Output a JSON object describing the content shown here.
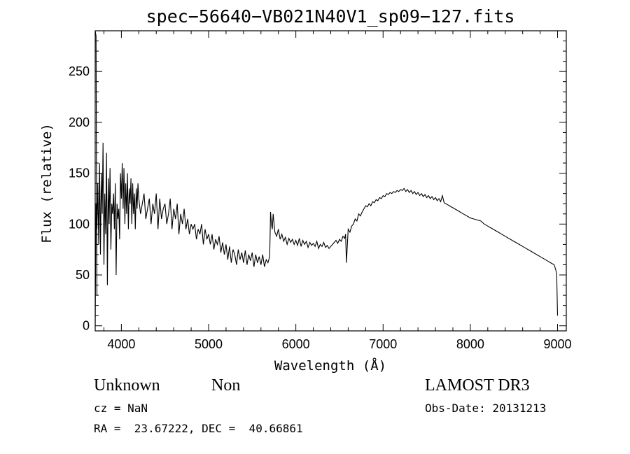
{
  "chart_data": {
    "type": "line",
    "title": "spec−56640−VB021N40V1_sp09−127.fits",
    "xlabel": "Wavelength (Å)",
    "ylabel": "Flux (relative)",
    "xlim": [
      3700,
      9100
    ],
    "ylim": [
      -5,
      290
    ],
    "xticks": [
      4000,
      5000,
      6000,
      7000,
      8000,
      9000
    ],
    "yticks": [
      0,
      50,
      100,
      150,
      200,
      250
    ],
    "grid": false,
    "series": [
      {
        "x": [
          3700,
          3710,
          3720,
          3730,
          3740,
          3750,
          3760,
          3770,
          3780,
          3790,
          3800,
          3810,
          3820,
          3830,
          3840,
          3850,
          3860,
          3870,
          3880,
          3890,
          3900,
          3910,
          3920,
          3930,
          3940,
          3950,
          3960,
          3970,
          3980,
          3990,
          4000,
          4010,
          4020,
          4030,
          4040,
          4050,
          4060,
          4070,
          4080,
          4090,
          4100,
          4110,
          4120,
          4130,
          4140,
          4150,
          4160,
          4170,
          4180,
          4190,
          4200,
          4220,
          4240,
          4260,
          4280,
          4300,
          4320,
          4340,
          4360,
          4380,
          4400,
          4420,
          4440,
          4460,
          4480,
          4500,
          4520,
          4540,
          4560,
          4580,
          4600,
          4620,
          4640,
          4660,
          4680,
          4700,
          4720,
          4740,
          4760,
          4780,
          4800,
          4820,
          4840,
          4860,
          4880,
          4900,
          4920,
          4940,
          4960,
          4980,
          5000,
          5020,
          5040,
          5060,
          5080,
          5100,
          5120,
          5140,
          5160,
          5180,
          5200,
          5220,
          5240,
          5260,
          5280,
          5300,
          5320,
          5340,
          5360,
          5380,
          5400,
          5420,
          5440,
          5460,
          5480,
          5500,
          5520,
          5540,
          5560,
          5580,
          5600,
          5620,
          5640,
          5660,
          5680,
          5700,
          5710,
          5720,
          5730,
          5740,
          5760,
          5780,
          5800,
          5820,
          5840,
          5860,
          5880,
          5900,
          5920,
          5940,
          5960,
          5980,
          6000,
          6020,
          6040,
          6060,
          6080,
          6100,
          6120,
          6140,
          6160,
          6180,
          6200,
          6220,
          6240,
          6260,
          6280,
          6300,
          6320,
          6340,
          6360,
          6380,
          6400,
          6420,
          6440,
          6460,
          6480,
          6500,
          6520,
          6540,
          6560,
          6570,
          6580,
          6600,
          6620,
          6640,
          6660,
          6680,
          6700,
          6720,
          6740,
          6760,
          6780,
          6800,
          6820,
          6840,
          6860,
          6880,
          6900,
          6920,
          6940,
          6960,
          6980,
          7000,
          7020,
          7040,
          7060,
          7080,
          7100,
          7120,
          7140,
          7160,
          7180,
          7200,
          7220,
          7240,
          7260,
          7280,
          7300,
          7320,
          7340,
          7360,
          7380,
          7400,
          7420,
          7440,
          7460,
          7480,
          7500,
          7520,
          7540,
          7560,
          7580,
          7600,
          7620,
          7640,
          7660,
          7680,
          7700,
          7720,
          7740,
          7760,
          7780,
          7800,
          7820,
          7840,
          7860,
          7880,
          7900,
          7920,
          7940,
          7960,
          7980,
          8000,
          8040,
          8080,
          8120,
          8160,
          8200,
          8240,
          8280,
          8320,
          8360,
          8400,
          8440,
          8480,
          8520,
          8560,
          8600,
          8640,
          8680,
          8720,
          8760,
          8800,
          8840,
          8880,
          8920,
          8960,
          8980,
          8990,
          9000
        ],
        "y": [
          0,
          120,
          95,
          140,
          80,
          160,
          70,
          150,
          110,
          180,
          60,
          130,
          90,
          170,
          40,
          145,
          100,
          155,
          75,
          120,
          110,
          130,
          95,
          140,
          50,
          120,
          105,
          115,
          85,
          150,
          125,
          160,
          115,
          155,
          100,
          140,
          110,
          150,
          95,
          135,
          120,
          145,
          100,
          140,
          110,
          130,
          95,
          135,
          115,
          140,
          125,
          110,
          120,
          130,
          105,
          115,
          125,
          100,
          120,
          110,
          130,
          95,
          125,
          105,
          115,
          120,
          100,
          110,
          125,
          95,
          115,
          105,
          120,
          90,
          110,
          100,
          115,
          95,
          105,
          90,
          100,
          95,
          100,
          85,
          95,
          90,
          100,
          80,
          95,
          85,
          90,
          80,
          90,
          75,
          85,
          80,
          88,
          72,
          82,
          70,
          80,
          65,
          78,
          62,
          75,
          70,
          60,
          75,
          65,
          72,
          62,
          74,
          60,
          70,
          64,
          72,
          58,
          70,
          62,
          68,
          60,
          70,
          58,
          65,
          62,
          68,
          112,
          100,
          95,
          110,
          92,
          88,
          95,
          85,
          90,
          83,
          87,
          80,
          86,
          82,
          85,
          80,
          84,
          79,
          86,
          78,
          84,
          80,
          83,
          77,
          82,
          79,
          81,
          78,
          83,
          76,
          80,
          78,
          82,
          77,
          79,
          76,
          78,
          80,
          82,
          84,
          81,
          85,
          83,
          88,
          86,
          90,
          62,
          95,
          92,
          98,
          100,
          105,
          103,
          110,
          108,
          112,
          115,
          118,
          117,
          120,
          118,
          122,
          121,
          124,
          123,
          126,
          125,
          128,
          127,
          130,
          129,
          131,
          130,
          132,
          131,
          133,
          132,
          134,
          133,
          135,
          132,
          134,
          131,
          133,
          130,
          132,
          129,
          131,
          128,
          130,
          127,
          129,
          126,
          128,
          125,
          127,
          124,
          126,
          123,
          125,
          122,
          128,
          121,
          120,
          119,
          118,
          117,
          116,
          115,
          114,
          113,
          112,
          111,
          110,
          109,
          108,
          107,
          106,
          105,
          104,
          103,
          100,
          98,
          96,
          94,
          92,
          90,
          88,
          86,
          84,
          82,
          80,
          78,
          76,
          74,
          72,
          70,
          68,
          66,
          64,
          62,
          60,
          55,
          50,
          10
        ]
      },
      {
        "x": [
          3700,
          3710,
          3720
        ],
        "y": [
          290,
          285,
          30
        ]
      }
    ]
  },
  "footer": {
    "left_line1_a": "Unknown",
    "left_line1_b": "Non",
    "left_line2": "cz = NaN",
    "left_line3": "RA =  23.67222, DEC =  40.66861",
    "right_line1": "LAMOST DR3",
    "right_line2": "Obs-Date: 20131213"
  }
}
